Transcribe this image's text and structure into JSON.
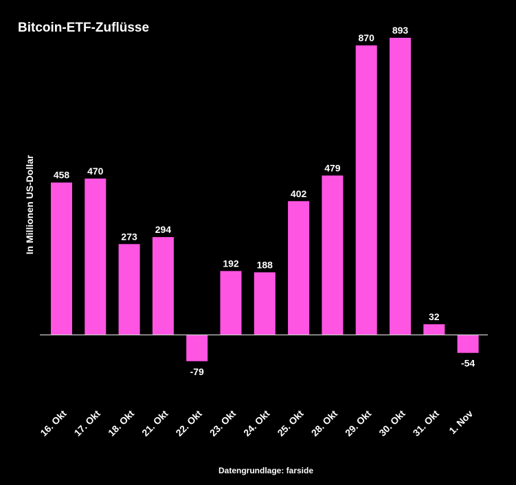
{
  "chart_data": {
    "type": "bar",
    "title": "Bitcoin-ETF-Zuflüsse",
    "ylabel": "In Millionen US-Dollar",
    "xlabel": "",
    "source": "Datengrundlage: farside",
    "categories": [
      "16. Okt",
      "17. Okt",
      "18. Okt",
      "21. Okt",
      "22. Okt",
      "23. Okt",
      "24. Okt",
      "25. Okt",
      "28. Okt",
      "29. Okt",
      "30. Okt",
      "31. Okt",
      "1. Nov"
    ],
    "values": [
      458,
      470,
      273,
      294,
      -79,
      192,
      188,
      402,
      479,
      870,
      893,
      32,
      -54
    ],
    "ylim": [
      -180,
      920
    ],
    "grid": false,
    "legend": "none",
    "bar_color": "#ff55e3",
    "background": "#000000",
    "axis_color": "#cccccc"
  }
}
